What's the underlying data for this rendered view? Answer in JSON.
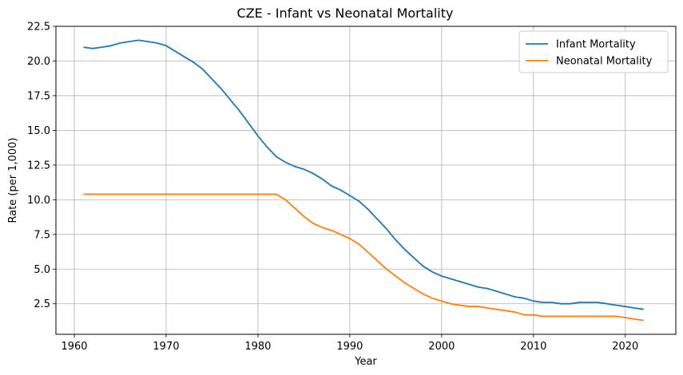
{
  "chart_data": {
    "type": "line",
    "title": "CZE - Infant vs Neonatal Mortality",
    "xlabel": "Year",
    "ylabel": "Rate (per 1,000)",
    "xlim": [
      1958,
      2025.5
    ],
    "ylim": [
      0.3,
      22.5
    ],
    "xticks": [
      1960,
      1970,
      1980,
      1990,
      2000,
      2010,
      2020
    ],
    "yticks": [
      2.5,
      5.0,
      7.5,
      10.0,
      12.5,
      15.0,
      17.5,
      20.0,
      22.5
    ],
    "ytick_labels": [
      "2.5",
      "5.0",
      "7.5",
      "10.0",
      "12.5",
      "15.0",
      "17.5",
      "20.0",
      "22.5"
    ],
    "grid": true,
    "legend_position": "top-right",
    "x": [
      1961,
      1962,
      1963,
      1964,
      1965,
      1966,
      1967,
      1968,
      1969,
      1970,
      1971,
      1972,
      1973,
      1974,
      1975,
      1976,
      1977,
      1978,
      1979,
      1980,
      1981,
      1982,
      1983,
      1984,
      1985,
      1986,
      1987,
      1988,
      1989,
      1990,
      1991,
      1992,
      1993,
      1994,
      1995,
      1996,
      1997,
      1998,
      1999,
      2000,
      2001,
      2002,
      2003,
      2004,
      2005,
      2006,
      2007,
      2008,
      2009,
      2010,
      2011,
      2012,
      2013,
      2014,
      2015,
      2016,
      2017,
      2018,
      2019,
      2020,
      2021,
      2022
    ],
    "series": [
      {
        "name": "Infant Mortality",
        "color": "#1f77b4",
        "values": [
          21.0,
          20.9,
          21.0,
          21.1,
          21.3,
          21.4,
          21.5,
          21.4,
          21.3,
          21.1,
          20.7,
          20.3,
          19.9,
          19.4,
          18.7,
          18.0,
          17.2,
          16.4,
          15.5,
          14.6,
          13.8,
          13.1,
          12.7,
          12.4,
          12.2,
          11.9,
          11.5,
          11.0,
          10.7,
          10.3,
          9.9,
          9.3,
          8.6,
          7.9,
          7.1,
          6.4,
          5.8,
          5.2,
          4.8,
          4.5,
          4.3,
          4.1,
          3.9,
          3.7,
          3.6,
          3.4,
          3.2,
          3.0,
          2.9,
          2.7,
          2.6,
          2.6,
          2.5,
          2.5,
          2.6,
          2.6,
          2.6,
          2.5,
          2.4,
          2.3,
          2.2,
          2.1
        ]
      },
      {
        "name": "Neonatal Mortality",
        "color": "#ff7f0e",
        "values": [
          10.4,
          10.4,
          10.4,
          10.4,
          10.4,
          10.4,
          10.4,
          10.4,
          10.4,
          10.4,
          10.4,
          10.4,
          10.4,
          10.4,
          10.4,
          10.4,
          10.4,
          10.4,
          10.4,
          10.4,
          10.4,
          10.4,
          10.0,
          9.4,
          8.8,
          8.3,
          8.0,
          7.8,
          7.5,
          7.2,
          6.8,
          6.2,
          5.6,
          5.0,
          4.5,
          4.0,
          3.6,
          3.2,
          2.9,
          2.7,
          2.5,
          2.4,
          2.3,
          2.3,
          2.2,
          2.1,
          2.0,
          1.9,
          1.7,
          1.7,
          1.6,
          1.6,
          1.6,
          1.6,
          1.6,
          1.6,
          1.6,
          1.6,
          1.6,
          1.5,
          1.4,
          1.3
        ]
      }
    ]
  }
}
